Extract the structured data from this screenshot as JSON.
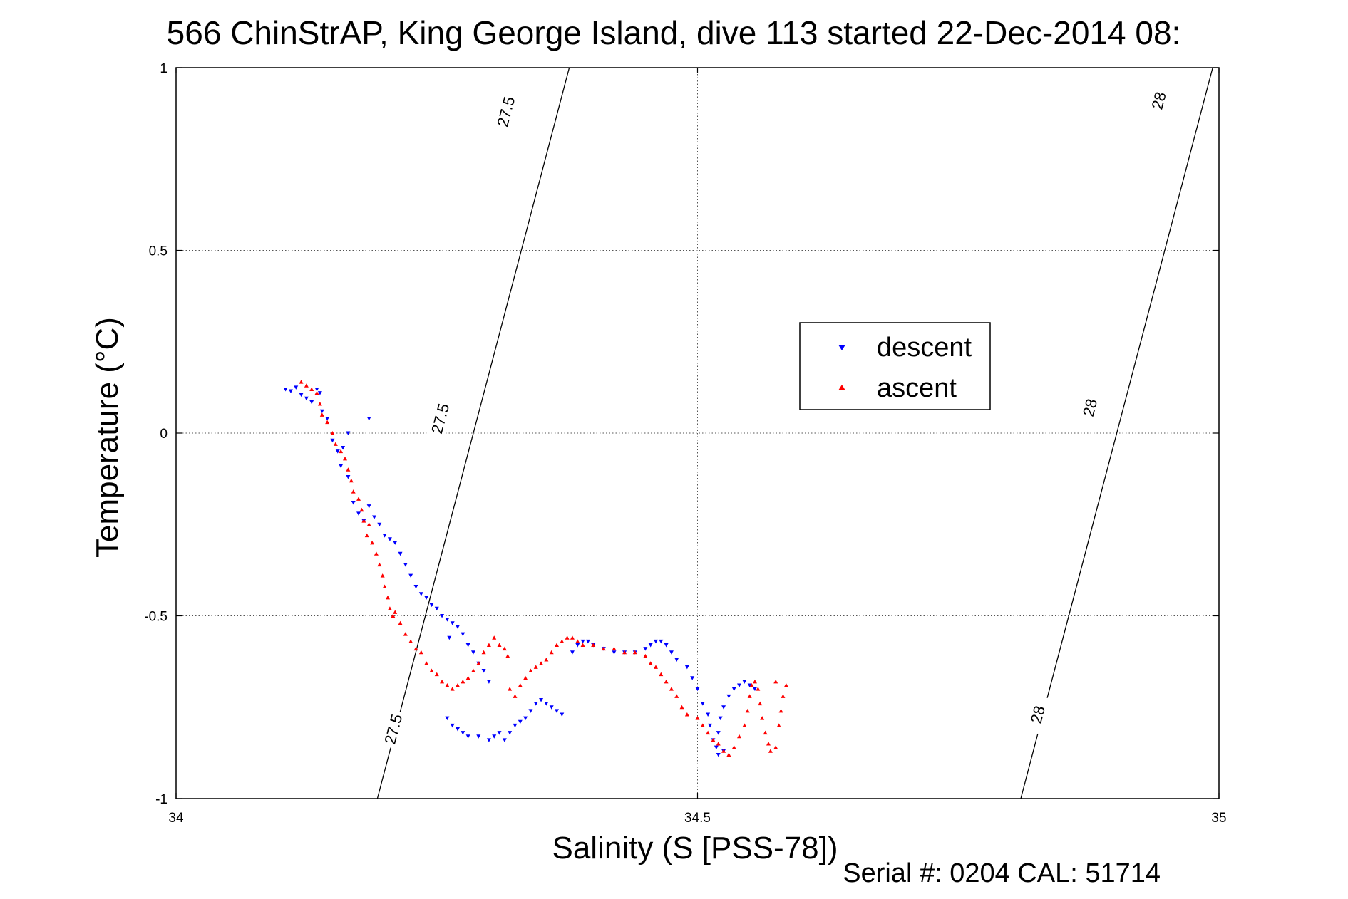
{
  "chart_data": {
    "type": "scatter",
    "title": "566 ChinStrAP, King George Island, dive 113 started 22-Dec-2014 08:",
    "xlabel": "Salinity (S [PSS-78])",
    "ylabel": "Temperature (°C)",
    "xlim": [
      34,
      35
    ],
    "ylim": [
      -1,
      1
    ],
    "x_ticks": [
      34,
      34.5,
      35
    ],
    "y_ticks": [
      -1,
      -0.5,
      0,
      0.5,
      1
    ],
    "x_tick_labels": [
      "34",
      "34.5",
      "35"
    ],
    "y_tick_labels": [
      "-1",
      "-0.5",
      "0",
      "0.5",
      "1"
    ],
    "grid": true,
    "legend_position": "center-right",
    "footer": "Serial #: 0204  CAL: 51714",
    "colors": {
      "descent": "#0000ff",
      "ascent": "#ff0000",
      "contour": "#000000"
    },
    "isopycnals": [
      {
        "label": "27.5",
        "points": [
          [
            34.193,
            -1.0
          ],
          [
            34.285,
            0.0
          ],
          [
            34.377,
            1.0
          ]
        ],
        "label_positions": [
          [
            34.208,
            -0.81
          ],
          [
            34.253,
            0.04
          ],
          [
            34.316,
            0.88
          ]
        ]
      },
      {
        "label": "28",
        "points": [
          [
            34.81,
            -1.0
          ],
          [
            34.902,
            0.0
          ],
          [
            34.994,
            1.0
          ]
        ],
        "label_positions": [
          [
            34.826,
            -0.77
          ],
          [
            34.876,
            0.07
          ],
          [
            34.942,
            0.91
          ]
        ]
      }
    ],
    "series": [
      {
        "name": "descent",
        "marker": "triangle-down",
        "points": [
          [
            34.105,
            0.12
          ],
          [
            34.11,
            0.115
          ],
          [
            34.115,
            0.125
          ],
          [
            34.12,
            0.105
          ],
          [
            34.125,
            0.095
          ],
          [
            34.13,
            0.085
          ],
          [
            34.135,
            0.12
          ],
          [
            34.138,
            0.11
          ],
          [
            34.14,
            0.06
          ],
          [
            34.145,
            0.04
          ],
          [
            34.15,
            -0.02
          ],
          [
            34.155,
            -0.05
          ],
          [
            34.16,
            -0.04
          ],
          [
            34.165,
            0.0
          ],
          [
            34.158,
            -0.09
          ],
          [
            34.165,
            -0.12
          ],
          [
            34.185,
            0.04
          ],
          [
            34.17,
            -0.19
          ],
          [
            34.175,
            -0.22
          ],
          [
            34.18,
            -0.24
          ],
          [
            34.185,
            -0.2
          ],
          [
            34.19,
            -0.23
          ],
          [
            34.195,
            -0.25
          ],
          [
            34.2,
            -0.28
          ],
          [
            34.205,
            -0.29
          ],
          [
            34.21,
            -0.3
          ],
          [
            34.215,
            -0.33
          ],
          [
            34.22,
            -0.36
          ],
          [
            34.225,
            -0.39
          ],
          [
            34.23,
            -0.42
          ],
          [
            34.235,
            -0.44
          ],
          [
            34.24,
            -0.45
          ],
          [
            34.245,
            -0.47
          ],
          [
            34.25,
            -0.48
          ],
          [
            34.255,
            -0.5
          ],
          [
            34.26,
            -0.51
          ],
          [
            34.265,
            -0.52
          ],
          [
            34.27,
            -0.53
          ],
          [
            34.275,
            -0.55
          ],
          [
            34.28,
            -0.58
          ],
          [
            34.262,
            -0.56
          ],
          [
            34.285,
            -0.6
          ],
          [
            34.29,
            -0.63
          ],
          [
            34.295,
            -0.65
          ],
          [
            34.3,
            -0.68
          ],
          [
            34.26,
            -0.78
          ],
          [
            34.265,
            -0.8
          ],
          [
            34.27,
            -0.81
          ],
          [
            34.275,
            -0.82
          ],
          [
            34.28,
            -0.83
          ],
          [
            34.29,
            -0.83
          ],
          [
            34.3,
            -0.84
          ],
          [
            34.305,
            -0.83
          ],
          [
            34.31,
            -0.82
          ],
          [
            34.315,
            -0.84
          ],
          [
            34.32,
            -0.82
          ],
          [
            34.325,
            -0.8
          ],
          [
            34.33,
            -0.79
          ],
          [
            34.335,
            -0.78
          ],
          [
            34.34,
            -0.76
          ],
          [
            34.345,
            -0.74
          ],
          [
            34.35,
            -0.73
          ],
          [
            34.355,
            -0.74
          ],
          [
            34.36,
            -0.75
          ],
          [
            34.365,
            -0.76
          ],
          [
            34.37,
            -0.77
          ],
          [
            34.38,
            -0.6
          ],
          [
            34.385,
            -0.58
          ],
          [
            34.39,
            -0.57
          ],
          [
            34.395,
            -0.57
          ],
          [
            34.4,
            -0.58
          ],
          [
            34.41,
            -0.59
          ],
          [
            34.42,
            -0.6
          ],
          [
            34.43,
            -0.6
          ],
          [
            34.44,
            -0.6
          ],
          [
            34.45,
            -0.59
          ],
          [
            34.455,
            -0.58
          ],
          [
            34.46,
            -0.57
          ],
          [
            34.465,
            -0.57
          ],
          [
            34.47,
            -0.58
          ],
          [
            34.475,
            -0.6
          ],
          [
            34.48,
            -0.62
          ],
          [
            34.49,
            -0.64
          ],
          [
            34.495,
            -0.67
          ],
          [
            34.5,
            -0.7
          ],
          [
            34.505,
            -0.74
          ],
          [
            34.51,
            -0.77
          ],
          [
            34.512,
            -0.8
          ],
          [
            34.515,
            -0.84
          ],
          [
            34.518,
            -0.86
          ],
          [
            34.52,
            -0.82
          ],
          [
            34.522,
            -0.78
          ],
          [
            34.525,
            -0.75
          ],
          [
            34.53,
            -0.72
          ],
          [
            34.535,
            -0.7
          ],
          [
            34.54,
            -0.69
          ],
          [
            34.545,
            -0.68
          ],
          [
            34.55,
            -0.69
          ],
          [
            34.555,
            -0.7
          ],
          [
            34.52,
            -0.88
          ],
          [
            34.525,
            -0.87
          ]
        ]
      },
      {
        "name": "ascent",
        "marker": "triangle-up",
        "points": [
          [
            34.12,
            0.14
          ],
          [
            34.125,
            0.13
          ],
          [
            34.13,
            0.12
          ],
          [
            34.135,
            0.11
          ],
          [
            34.138,
            0.08
          ],
          [
            34.14,
            0.05
          ],
          [
            34.145,
            0.03
          ],
          [
            34.15,
            0.0
          ],
          [
            34.153,
            -0.03
          ],
          [
            34.158,
            -0.05
          ],
          [
            34.162,
            -0.07
          ],
          [
            34.165,
            -0.1
          ],
          [
            34.168,
            -0.13
          ],
          [
            34.17,
            -0.16
          ],
          [
            34.175,
            -0.18
          ],
          [
            34.178,
            -0.21
          ],
          [
            34.18,
            -0.24
          ],
          [
            34.185,
            -0.25
          ],
          [
            34.183,
            -0.28
          ],
          [
            34.188,
            -0.3
          ],
          [
            34.192,
            -0.33
          ],
          [
            34.195,
            -0.36
          ],
          [
            34.198,
            -0.39
          ],
          [
            34.2,
            -0.42
          ],
          [
            34.203,
            -0.45
          ],
          [
            34.205,
            -0.48
          ],
          [
            34.208,
            -0.5
          ],
          [
            34.21,
            -0.49
          ],
          [
            34.215,
            -0.52
          ],
          [
            34.22,
            -0.55
          ],
          [
            34.225,
            -0.57
          ],
          [
            34.23,
            -0.59
          ],
          [
            34.235,
            -0.6
          ],
          [
            34.24,
            -0.63
          ],
          [
            34.245,
            -0.65
          ],
          [
            34.25,
            -0.66
          ],
          [
            34.255,
            -0.68
          ],
          [
            34.26,
            -0.69
          ],
          [
            34.265,
            -0.7
          ],
          [
            34.27,
            -0.69
          ],
          [
            34.275,
            -0.68
          ],
          [
            34.28,
            -0.67
          ],
          [
            34.285,
            -0.65
          ],
          [
            34.29,
            -0.63
          ],
          [
            34.295,
            -0.6
          ],
          [
            34.3,
            -0.58
          ],
          [
            34.305,
            -0.56
          ],
          [
            34.31,
            -0.58
          ],
          [
            34.315,
            -0.59
          ],
          [
            34.318,
            -0.61
          ],
          [
            34.32,
            -0.7
          ],
          [
            34.325,
            -0.72
          ],
          [
            34.33,
            -0.69
          ],
          [
            34.335,
            -0.67
          ],
          [
            34.34,
            -0.65
          ],
          [
            34.345,
            -0.64
          ],
          [
            34.35,
            -0.63
          ],
          [
            34.355,
            -0.62
          ],
          [
            34.36,
            -0.6
          ],
          [
            34.365,
            -0.58
          ],
          [
            34.37,
            -0.57
          ],
          [
            34.375,
            -0.56
          ],
          [
            34.38,
            -0.56
          ],
          [
            34.385,
            -0.57
          ],
          [
            34.39,
            -0.58
          ],
          [
            34.4,
            -0.58
          ],
          [
            34.41,
            -0.59
          ],
          [
            34.42,
            -0.59
          ],
          [
            34.43,
            -0.6
          ],
          [
            34.44,
            -0.6
          ],
          [
            34.45,
            -0.61
          ],
          [
            34.455,
            -0.63
          ],
          [
            34.46,
            -0.64
          ],
          [
            34.465,
            -0.66
          ],
          [
            34.47,
            -0.68
          ],
          [
            34.475,
            -0.7
          ],
          [
            34.48,
            -0.72
          ],
          [
            34.485,
            -0.75
          ],
          [
            34.49,
            -0.77
          ],
          [
            34.5,
            -0.78
          ],
          [
            34.505,
            -0.8
          ],
          [
            34.51,
            -0.82
          ],
          [
            34.515,
            -0.84
          ],
          [
            34.52,
            -0.85
          ],
          [
            34.525,
            -0.87
          ],
          [
            34.53,
            -0.88
          ],
          [
            34.535,
            -0.86
          ],
          [
            34.54,
            -0.83
          ],
          [
            34.545,
            -0.8
          ],
          [
            34.548,
            -0.76
          ],
          [
            34.55,
            -0.72
          ],
          [
            34.552,
            -0.69
          ],
          [
            34.555,
            -0.68
          ],
          [
            34.558,
            -0.7
          ],
          [
            34.56,
            -0.74
          ],
          [
            34.562,
            -0.78
          ],
          [
            34.565,
            -0.82
          ],
          [
            34.568,
            -0.85
          ],
          [
            34.57,
            -0.87
          ],
          [
            34.575,
            -0.86
          ],
          [
            34.578,
            -0.8
          ],
          [
            34.58,
            -0.76
          ],
          [
            34.582,
            -0.72
          ],
          [
            34.585,
            -0.69
          ],
          [
            34.575,
            -0.68
          ]
        ]
      }
    ]
  }
}
